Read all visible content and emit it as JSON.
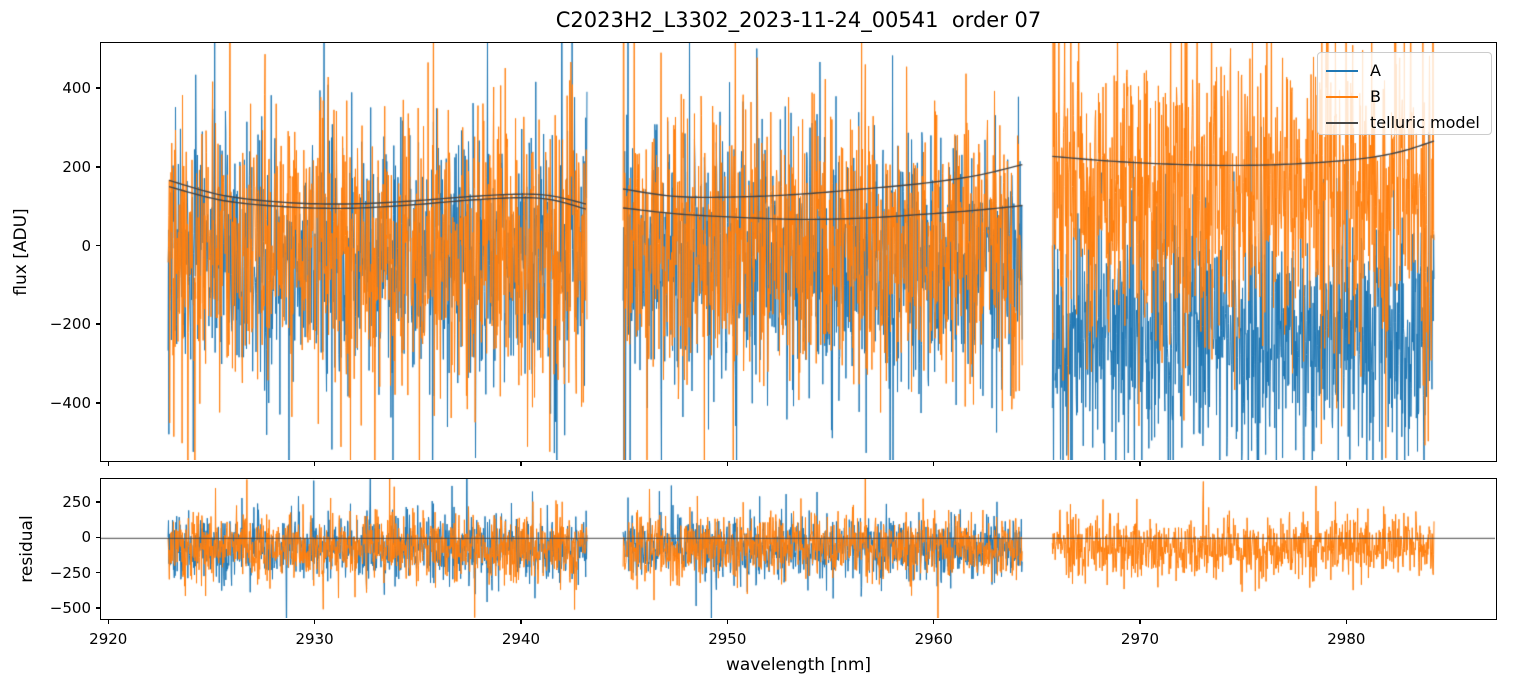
{
  "title": "C2023H2_L3302_2023-11-24_00541  order 07",
  "legend": {
    "entries": [
      {
        "label": "A",
        "color": "#1f77b4"
      },
      {
        "label": "B",
        "color": "#ff7f0e"
      },
      {
        "label": "telluric model",
        "color": "#454545"
      }
    ]
  },
  "chart_data": [
    {
      "type": "line",
      "panel": "flux",
      "title": "C2023H2_L3302_2023-11-24_00541  order 07",
      "ylabel": "flux [ADU]",
      "ylim": [
        -550,
        517
      ],
      "yticks": [
        -400,
        -200,
        0,
        200,
        400
      ],
      "xlim": [
        2919.6,
        2987.3
      ],
      "xticks": [
        2920,
        2930,
        2940,
        2950,
        2960,
        2970,
        2980
      ],
      "sample_step_nm": 0.02,
      "description": "Three detector segments of a noisy echelle spectrum order; series A and B are noisy flux traces, dark lines are the smooth telluric model.",
      "series": [
        {
          "name": "A",
          "color": "#1f77b4",
          "segments": [
            {
              "wave_range": [
                2922.85,
                2943.15
              ],
              "mean": -35,
              "sigma": 160
            },
            {
              "wave_range": [
                2944.9,
                2964.25
              ],
              "mean": -40,
              "sigma": 160
            },
            {
              "wave_range": [
                2965.7,
                2984.2
              ],
              "mean": -225,
              "sigma": 150
            }
          ]
        },
        {
          "name": "B",
          "color": "#ff7f0e",
          "segments": [
            {
              "wave_range": [
                2922.85,
                2943.15
              ],
              "mean": -15,
              "sigma": 170
            },
            {
              "wave_range": [
                2944.9,
                2964.25
              ],
              "mean": -10,
              "sigma": 175
            },
            {
              "wave_range": [
                2965.7,
                2984.2
              ],
              "mean": 140,
              "sigma": 190,
              "end_boost": 2.1
            }
          ]
        }
      ],
      "telluric_model": {
        "name": "telluric model",
        "color": "#454545",
        "curves": [
          {
            "points": [
              [
                2922.9,
                168
              ],
              [
                2925.5,
                130
              ],
              [
                2928.5,
                112
              ],
              [
                2931.5,
                108
              ],
              [
                2934.5,
                115
              ],
              [
                2937.5,
                127
              ],
              [
                2940,
                133
              ],
              [
                2941.5,
                128
              ],
              [
                2943.1,
                108
              ]
            ]
          },
          {
            "points": [
              [
                2922.9,
                152
              ],
              [
                2925.5,
                117
              ],
              [
                2928.5,
                101
              ],
              [
                2931.5,
                97
              ],
              [
                2934.5,
                105
              ],
              [
                2937.5,
                118
              ],
              [
                2940,
                124
              ],
              [
                2941.5,
                118
              ],
              [
                2943.1,
                95
              ]
            ]
          },
          {
            "points": [
              [
                2944.9,
                146
              ],
              [
                2947.5,
                127
              ],
              [
                2950.5,
                126
              ],
              [
                2953.5,
                133
              ],
              [
                2956.5,
                146
              ],
              [
                2959.5,
                161
              ],
              [
                2962,
                180
              ],
              [
                2964.25,
                208
              ]
            ]
          },
          {
            "points": [
              [
                2944.9,
                98
              ],
              [
                2947.5,
                83
              ],
              [
                2950.5,
                74
              ],
              [
                2953.5,
                69
              ],
              [
                2956.5,
                72
              ],
              [
                2959.5,
                82
              ],
              [
                2962,
                92
              ],
              [
                2964.25,
                104
              ]
            ]
          },
          {
            "points": [
              [
                2965.7,
                229
              ],
              [
                2968.5,
                217
              ],
              [
                2971.5,
                209
              ],
              [
                2974.5,
                206
              ],
              [
                2977.5,
                210
              ],
              [
                2980.5,
                222
              ],
              [
                2982.5,
                240
              ],
              [
                2984.2,
                268
              ]
            ]
          }
        ]
      }
    },
    {
      "type": "line",
      "panel": "residual",
      "ylabel": "residual",
      "xlabel": "wavelength [nm]",
      "ylim": [
        -585,
        420
      ],
      "yticks": [
        -500,
        -250,
        0,
        250
      ],
      "xlim": [
        2919.6,
        2987.3
      ],
      "xticks": [
        2920,
        2930,
        2940,
        2950,
        2960,
        2970,
        2980
      ],
      "zero_line": {
        "y": 0,
        "color": "#454545"
      },
      "sample_step_nm": 0.02,
      "series": [
        {
          "name": "A",
          "color": "#1f77b4",
          "segments": [
            {
              "wave_range": [
                2922.85,
                2943.15
              ],
              "mean": -70,
              "sigma": 115
            },
            {
              "wave_range": [
                2944.9,
                2964.25
              ],
              "mean": -70,
              "sigma": 115
            }
          ]
        },
        {
          "name": "B",
          "color": "#ff7f0e",
          "segments": [
            {
              "wave_range": [
                2922.85,
                2943.15
              ],
              "mean": -65,
              "sigma": 112
            },
            {
              "wave_range": [
                2944.9,
                2964.25
              ],
              "mean": -62,
              "sigma": 112
            },
            {
              "wave_range": [
                2965.7,
                2984.2
              ],
              "mean": -55,
              "sigma": 108
            }
          ]
        }
      ]
    }
  ]
}
